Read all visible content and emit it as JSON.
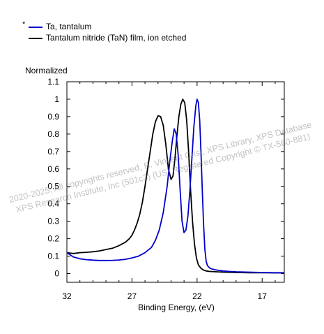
{
  "chart_data": {
    "type": "line",
    "ylabel": "Normalized",
    "xlabel": "Binding Energy, (eV)",
    "xlim": [
      32,
      15.3
    ],
    "ylim": [
      -0.05,
      1.1
    ],
    "x_reversed": true,
    "x_ticks": [
      32,
      27,
      22,
      17
    ],
    "y_ticks": [
      0,
      0.1,
      0.2,
      0.3,
      0.4,
      0.5,
      0.6,
      0.7,
      0.8,
      0.9,
      1,
      1.1
    ],
    "y_tick_labels": [
      "0",
      "0.1",
      "0.2",
      "0.3",
      "0.4",
      "0.5",
      "0.6",
      "0.7",
      "0.8",
      "0.9",
      "1",
      "1.1"
    ],
    "grid": false,
    "legend_position": "top-left, above plot",
    "series": [
      {
        "name": "Ta, tantalum",
        "color": "#0000cc",
        "marker": "*",
        "x": [
          32,
          31.5,
          31,
          30.5,
          30,
          29.5,
          29,
          28.5,
          28,
          27.5,
          27,
          26.5,
          26,
          25.5,
          25.2,
          24.9,
          24.6,
          24.3,
          24.1,
          23.9,
          23.75,
          23.6,
          23.45,
          23.3,
          23.15,
          23.0,
          22.85,
          22.7,
          22.55,
          22.4,
          22.25,
          22.1,
          22.0,
          21.9,
          21.8,
          21.7,
          21.6,
          21.5,
          21.4,
          21.3,
          21.2,
          21.0,
          20.8,
          20.5,
          20.0,
          19.5,
          19.0,
          18.0,
          17.0,
          16.0,
          15.3
        ],
        "y": [
          0.12,
          0.095,
          0.085,
          0.08,
          0.077,
          0.075,
          0.075,
          0.076,
          0.078,
          0.082,
          0.09,
          0.1,
          0.12,
          0.15,
          0.19,
          0.25,
          0.35,
          0.5,
          0.64,
          0.76,
          0.83,
          0.8,
          0.68,
          0.48,
          0.3,
          0.235,
          0.25,
          0.33,
          0.48,
          0.66,
          0.84,
          0.96,
          1.0,
          0.98,
          0.88,
          0.7,
          0.48,
          0.28,
          0.14,
          0.07,
          0.045,
          0.03,
          0.025,
          0.02,
          0.015,
          0.012,
          0.01,
          0.008,
          0.006,
          0.005,
          0.005
        ]
      },
      {
        "name": "Tantalum nitride (TaN) film, ion etched",
        "color": "#000000",
        "x": [
          32,
          31.5,
          31,
          30.5,
          30,
          29.5,
          29,
          28.5,
          28,
          27.5,
          27.2,
          27,
          26.8,
          26.6,
          26.4,
          26.2,
          26.0,
          25.8,
          25.6,
          25.4,
          25.2,
          25.0,
          24.8,
          24.6,
          24.4,
          24.2,
          24.0,
          23.85,
          23.7,
          23.55,
          23.4,
          23.25,
          23.1,
          22.95,
          22.8,
          22.65,
          22.5,
          22.35,
          22.2,
          22.05,
          21.9,
          21.7,
          21.5,
          21.3,
          21.0,
          20.5,
          20.0,
          19.0,
          18.0,
          17.0,
          16.0,
          15.3
        ],
        "y": [
          0.12,
          0.115,
          0.12,
          0.122,
          0.125,
          0.13,
          0.138,
          0.145,
          0.16,
          0.18,
          0.2,
          0.22,
          0.25,
          0.29,
          0.34,
          0.41,
          0.5,
          0.6,
          0.7,
          0.8,
          0.87,
          0.905,
          0.9,
          0.85,
          0.74,
          0.6,
          0.54,
          0.56,
          0.66,
          0.79,
          0.9,
          0.97,
          1.0,
          0.98,
          0.88,
          0.7,
          0.48,
          0.3,
          0.17,
          0.09,
          0.05,
          0.03,
          0.02,
          0.015,
          0.012,
          0.01,
          0.008,
          0.006,
          0.005,
          0.005,
          0.004,
          0.004
        ]
      }
    ]
  },
  "legend": {
    "marker": "*",
    "items": [
      {
        "label": "Ta, tantalum",
        "color": "#0000cc"
      },
      {
        "label": "Tantalum nitride (TaN) film, ion etched",
        "color": "#000000"
      }
    ]
  },
  "watermark": {
    "line1": "2020-2025, All copyrights reserved,   B. Vincent Crist,   XPS Library, XPS Database",
    "line2": "XPS Research Institute, Inc (501c3) (US) Registered Copyright © TX-560-881)"
  }
}
